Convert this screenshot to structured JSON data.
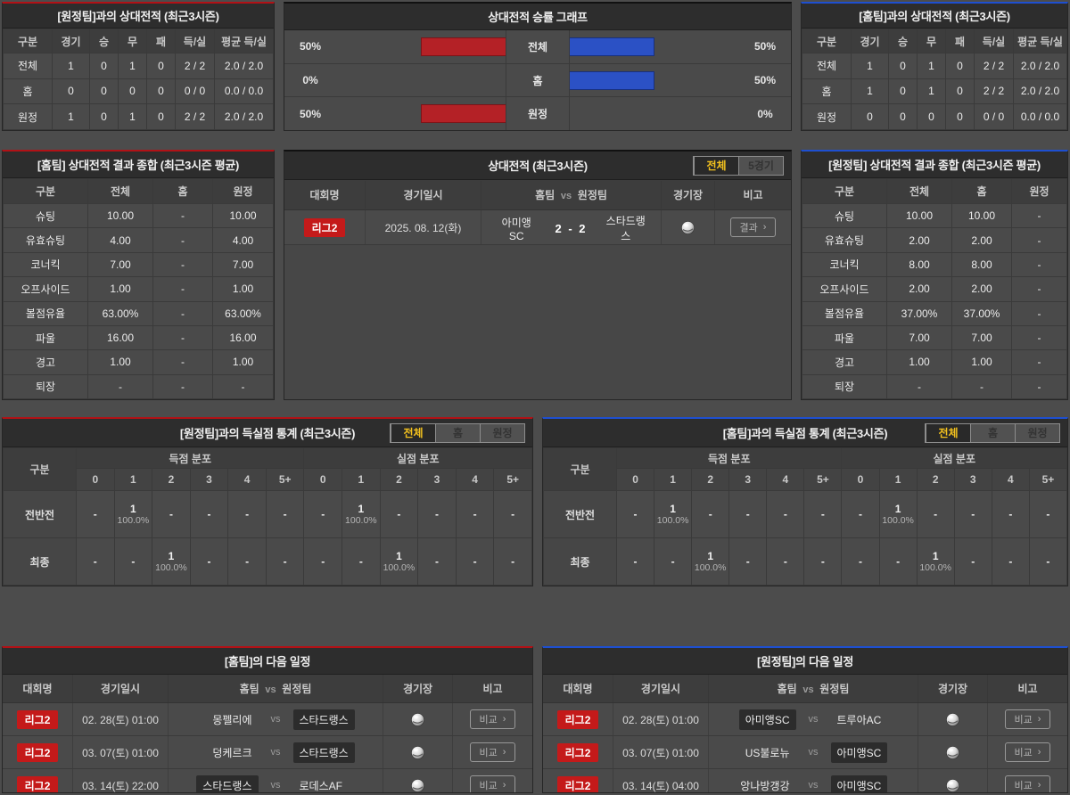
{
  "labels": {
    "vs": "vs"
  },
  "h2h_vs_away": {
    "title": "[원정팀]과의 상대전적 (최근3시즌)",
    "columns": [
      "구분",
      "경기",
      "승",
      "무",
      "패",
      "득/실",
      "평균 득/실"
    ],
    "rows": [
      [
        "전체",
        "1",
        "0",
        "1",
        "0",
        "2 / 2",
        "2.0 / 2.0"
      ],
      [
        "홈",
        "0",
        "0",
        "0",
        "0",
        "0 / 0",
        "0.0 / 0.0"
      ],
      [
        "원정",
        "1",
        "0",
        "1",
        "0",
        "2 / 2",
        "2.0 / 2.0"
      ]
    ]
  },
  "winrate": {
    "title": "상대전적 승률 그래프",
    "rows": [
      {
        "label": "전체",
        "left_pct": "50%",
        "left_w": 50,
        "right_pct": "50%",
        "right_w": 50
      },
      {
        "label": "홈",
        "left_pct": "0%",
        "left_w": 0,
        "right_pct": "50%",
        "right_w": 50
      },
      {
        "label": "원정",
        "left_pct": "50%",
        "left_w": 50,
        "right_pct": "0%",
        "right_w": 0
      }
    ]
  },
  "chart_data": {
    "type": "bar",
    "title": "상대전적 승률 그래프",
    "categories": [
      "전체",
      "홈",
      "원정"
    ],
    "series": [
      {
        "name": "좌측(적색) 승률",
        "color": "#b42126",
        "values": [
          50,
          0,
          50
        ]
      },
      {
        "name": "우측(청색) 승률",
        "color": "#2b51c5",
        "values": [
          50,
          50,
          0
        ]
      }
    ],
    "value_unit": "%",
    "xlim": [
      0,
      100
    ],
    "orientation": "horizontal-mirrored",
    "legend_position": "none",
    "grid": false
  },
  "h2h_vs_home": {
    "title": "[홈팀]과의 상대전적 (최근3시즌)",
    "columns": [
      "구분",
      "경기",
      "승",
      "무",
      "패",
      "득/실",
      "평균 득/실"
    ],
    "rows": [
      [
        "전체",
        "1",
        "0",
        "1",
        "0",
        "2 / 2",
        "2.0 / 2.0"
      ],
      [
        "홈",
        "1",
        "0",
        "1",
        "0",
        "2 / 2",
        "2.0 / 2.0"
      ],
      [
        "원정",
        "0",
        "0",
        "0",
        "0",
        "0 / 0",
        "0.0 / 0.0"
      ]
    ]
  },
  "summary_home": {
    "title": "[홈팀] 상대전적 결과 종합 (최근3시즌 평균)",
    "columns": [
      "구분",
      "전체",
      "홈",
      "원정"
    ],
    "rows": [
      [
        "슈팅",
        "10.00",
        "-",
        "10.00"
      ],
      [
        "유효슈팅",
        "4.00",
        "-",
        "4.00"
      ],
      [
        "코너킥",
        "7.00",
        "-",
        "7.00"
      ],
      [
        "오프사이드",
        "1.00",
        "-",
        "1.00"
      ],
      [
        "볼점유율",
        "63.00%",
        "-",
        "63.00%"
      ],
      [
        "파울",
        "16.00",
        "-",
        "16.00"
      ],
      [
        "경고",
        "1.00",
        "-",
        "1.00"
      ],
      [
        "퇴장",
        "-",
        "-",
        "-"
      ]
    ]
  },
  "h2h_matches": {
    "title": "상대전적 (최근3시즌)",
    "tabs": [
      {
        "label": "전체",
        "active": "1"
      },
      {
        "label": "5경기",
        "active": ""
      }
    ],
    "columns": {
      "league": "대회명",
      "date": "경기일시",
      "home": "홈팀",
      "vs": "vs",
      "away": "원정팀",
      "stadium": "경기장",
      "note": "비고"
    },
    "rows": [
      {
        "league": "리그2",
        "date": "2025. 08. 12(화)",
        "home": "아미앵SC",
        "score": "2 - 2",
        "away": "스타드랭스",
        "action": "결과"
      }
    ]
  },
  "summary_away": {
    "title": "[원정팀] 상대전적 결과 종합 (최근3시즌 평균)",
    "columns": [
      "구분",
      "전체",
      "홈",
      "원정"
    ],
    "rows": [
      [
        "슈팅",
        "10.00",
        "10.00",
        "-"
      ],
      [
        "유효슈팅",
        "2.00",
        "2.00",
        "-"
      ],
      [
        "코너킥",
        "8.00",
        "8.00",
        "-"
      ],
      [
        "오프사이드",
        "2.00",
        "2.00",
        "-"
      ],
      [
        "볼점유율",
        "37.00%",
        "37.00%",
        "-"
      ],
      [
        "파울",
        "7.00",
        "7.00",
        "-"
      ],
      [
        "경고",
        "1.00",
        "1.00",
        "-"
      ],
      [
        "퇴장",
        "-",
        "-",
        "-"
      ]
    ]
  },
  "goals_vs_away": {
    "title": "[원정팀]과의 득실점 통계 (최근3시즌)",
    "tabs": [
      {
        "label": "전체",
        "active": "1"
      },
      {
        "label": "홈",
        "active": ""
      },
      {
        "label": "원정",
        "active": ""
      }
    ],
    "corner": "구분",
    "group_scored": "득점 분포",
    "group_conceded": "실점 분포",
    "cols12": [
      "0",
      "1",
      "2",
      "3",
      "4",
      "5+",
      "0",
      "1",
      "2",
      "3",
      "4",
      "5+"
    ],
    "rows": [
      {
        "label": "전반전",
        "cells": [
          {
            "v": "-",
            "p": ""
          },
          {
            "v": "1",
            "p": "100.0%"
          },
          {
            "v": "-",
            "p": ""
          },
          {
            "v": "-",
            "p": ""
          },
          {
            "v": "-",
            "p": ""
          },
          {
            "v": "-",
            "p": ""
          },
          {
            "v": "-",
            "p": ""
          },
          {
            "v": "1",
            "p": "100.0%"
          },
          {
            "v": "-",
            "p": ""
          },
          {
            "v": "-",
            "p": ""
          },
          {
            "v": "-",
            "p": ""
          },
          {
            "v": "-",
            "p": ""
          }
        ]
      },
      {
        "label": "최종",
        "cells": [
          {
            "v": "-",
            "p": ""
          },
          {
            "v": "-",
            "p": ""
          },
          {
            "v": "1",
            "p": "100.0%"
          },
          {
            "v": "-",
            "p": ""
          },
          {
            "v": "-",
            "p": ""
          },
          {
            "v": "-",
            "p": ""
          },
          {
            "v": "-",
            "p": ""
          },
          {
            "v": "-",
            "p": ""
          },
          {
            "v": "1",
            "p": "100.0%"
          },
          {
            "v": "-",
            "p": ""
          },
          {
            "v": "-",
            "p": ""
          },
          {
            "v": "-",
            "p": ""
          }
        ]
      }
    ]
  },
  "goals_vs_home": {
    "title": "[홈팀]과의 득실점 통계 (최근3시즌)",
    "tabs": [
      {
        "label": "전체",
        "active": "1"
      },
      {
        "label": "홈",
        "active": ""
      },
      {
        "label": "원정",
        "active": ""
      }
    ],
    "corner": "구분",
    "group_scored": "득점 분포",
    "group_conceded": "실점 분포",
    "cols12": [
      "0",
      "1",
      "2",
      "3",
      "4",
      "5+",
      "0",
      "1",
      "2",
      "3",
      "4",
      "5+"
    ],
    "rows": [
      {
        "label": "전반전",
        "cells": [
          {
            "v": "-",
            "p": ""
          },
          {
            "v": "1",
            "p": "100.0%"
          },
          {
            "v": "-",
            "p": ""
          },
          {
            "v": "-",
            "p": ""
          },
          {
            "v": "-",
            "p": ""
          },
          {
            "v": "-",
            "p": ""
          },
          {
            "v": "-",
            "p": ""
          },
          {
            "v": "1",
            "p": "100.0%"
          },
          {
            "v": "-",
            "p": ""
          },
          {
            "v": "-",
            "p": ""
          },
          {
            "v": "-",
            "p": ""
          },
          {
            "v": "-",
            "p": ""
          }
        ]
      },
      {
        "label": "최종",
        "cells": [
          {
            "v": "-",
            "p": ""
          },
          {
            "v": "-",
            "p": ""
          },
          {
            "v": "1",
            "p": "100.0%"
          },
          {
            "v": "-",
            "p": ""
          },
          {
            "v": "-",
            "p": ""
          },
          {
            "v": "-",
            "p": ""
          },
          {
            "v": "-",
            "p": ""
          },
          {
            "v": "-",
            "p": ""
          },
          {
            "v": "1",
            "p": "100.0%"
          },
          {
            "v": "-",
            "p": ""
          },
          {
            "v": "-",
            "p": ""
          },
          {
            "v": "-",
            "p": ""
          }
        ]
      }
    ]
  },
  "schedule_home": {
    "title": "[홈팀]의 다음 일정",
    "columns": {
      "league": "대회명",
      "date": "경기일시",
      "home": "홈팀",
      "vs": "vs",
      "away": "원정팀",
      "stadium": "경기장",
      "note": "비고"
    },
    "rows": [
      {
        "league": "리그2",
        "date": "02. 28(토) 01:00",
        "home": "몽펠리에",
        "home_hl": "",
        "away": "스타드랭스",
        "away_hl": "1",
        "action": "비교"
      },
      {
        "league": "리그2",
        "date": "03. 07(토) 01:00",
        "home": "덩케르크",
        "home_hl": "",
        "away": "스타드랭스",
        "away_hl": "1",
        "action": "비교"
      },
      {
        "league": "리그2",
        "date": "03. 14(토) 22:00",
        "home": "스타드랭스",
        "home_hl": "1",
        "away": "로데스AF",
        "away_hl": "",
        "action": "비교"
      }
    ]
  },
  "schedule_away": {
    "title": "[원정팀]의 다음 일정",
    "columns": {
      "league": "대회명",
      "date": "경기일시",
      "home": "홈팀",
      "vs": "vs",
      "away": "원정팀",
      "stadium": "경기장",
      "note": "비고"
    },
    "rows": [
      {
        "league": "리그2",
        "date": "02. 28(토) 01:00",
        "home": "아미앵SC",
        "home_hl": "1",
        "away": "트루아AC",
        "away_hl": "",
        "action": "비교"
      },
      {
        "league": "리그2",
        "date": "03. 07(토) 01:00",
        "home": "US불로뉴",
        "home_hl": "",
        "away": "아미앵SC",
        "away_hl": "1",
        "action": "비교"
      },
      {
        "league": "리그2",
        "date": "03. 14(토) 04:00",
        "home": "앙나방갱강",
        "home_hl": "",
        "away": "아미앵SC",
        "away_hl": "1",
        "action": "비교"
      }
    ]
  },
  "colors": {
    "accent_red": "#b11116",
    "accent_blue": "#1e4fd0",
    "bar_red": "#b42126",
    "bar_blue": "#2b51c5",
    "badge_red": "#c41a1a",
    "tab_active_text": "#f2c01e",
    "panel_bg": "#474747",
    "page_bg": "#4c4c4c"
  }
}
